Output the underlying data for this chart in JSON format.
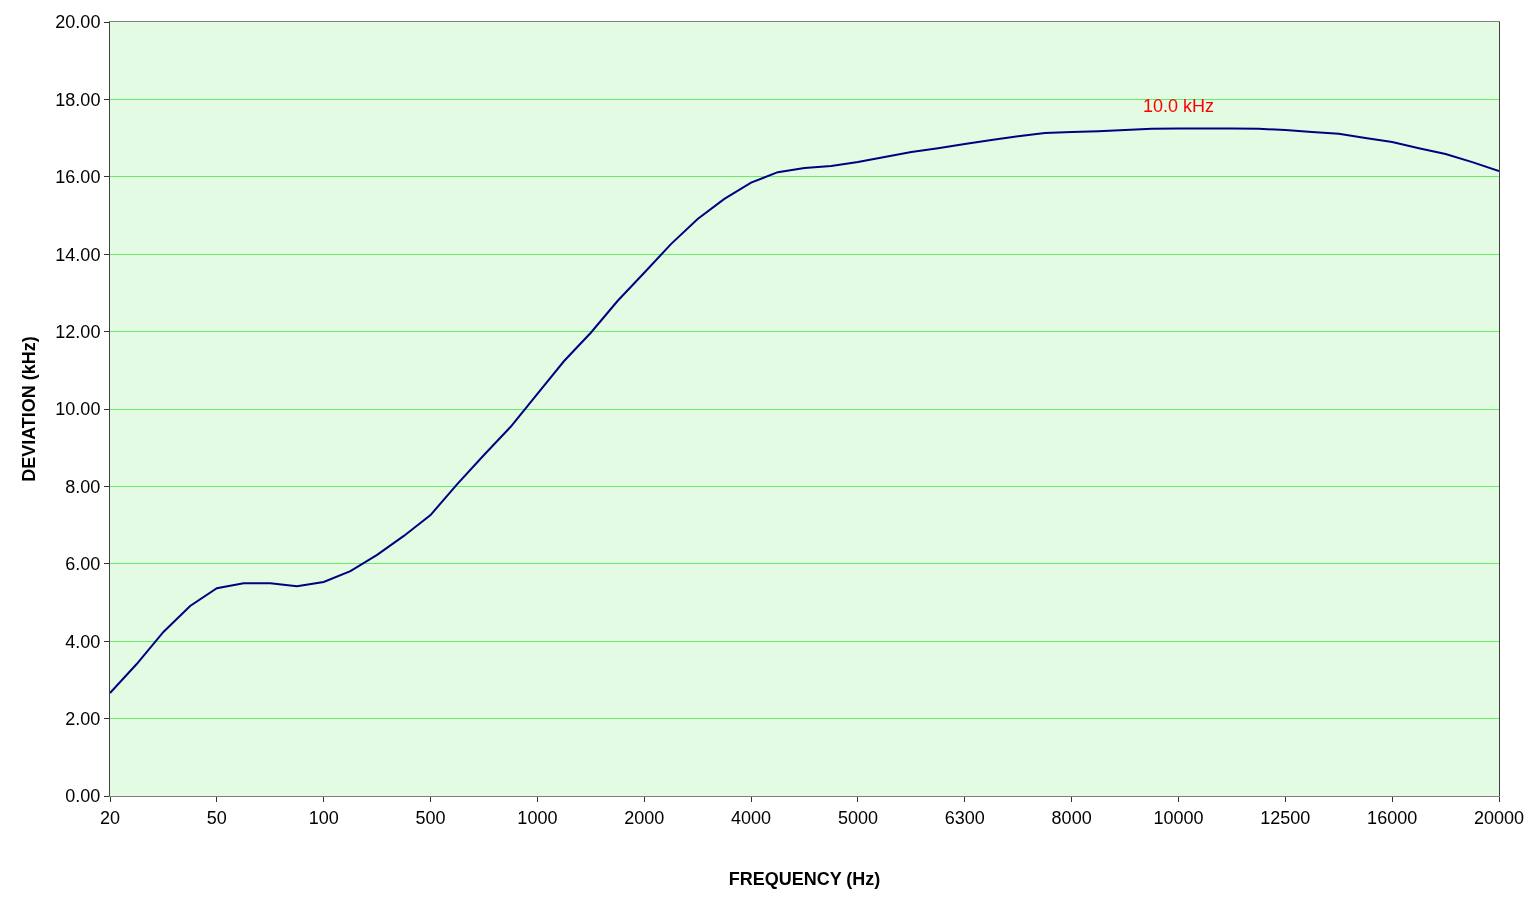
{
  "chart_data": {
    "type": "line",
    "xlabel": "FREQUENCY (Hz)",
    "ylabel": "DEVIATION (kHz)",
    "categories": [
      "20",
      null,
      null,
      null,
      "50",
      null,
      null,
      null,
      "100",
      null,
      null,
      null,
      "500",
      null,
      null,
      null,
      "1000",
      null,
      null,
      null,
      "2000",
      null,
      null,
      null,
      "4000",
      null,
      null,
      null,
      "5000",
      null,
      null,
      null,
      "6300",
      null,
      null,
      null,
      "8000",
      null,
      null,
      null,
      "10000",
      null,
      null,
      null,
      "12500",
      null,
      null,
      null,
      "16000",
      null,
      null,
      null,
      "20000"
    ],
    "series": [
      {
        "color": "#000080",
        "values": [
          2.66,
          3.41,
          4.24,
          4.91,
          5.37,
          5.5,
          5.5,
          5.42,
          5.53,
          5.81,
          6.23,
          6.72,
          7.26,
          8.06,
          8.81,
          9.54,
          10.39,
          11.24,
          11.97,
          12.79,
          13.52,
          14.26,
          14.91,
          15.43,
          15.85,
          16.12,
          16.23,
          16.28,
          16.38,
          16.51,
          16.64,
          16.74,
          16.85,
          16.95,
          17.05,
          17.13,
          17.16,
          17.18,
          17.21,
          17.24,
          17.25,
          17.25,
          17.25,
          17.24,
          17.21,
          17.16,
          17.11,
          17.0,
          16.9,
          16.74,
          16.59,
          16.38,
          16.15
        ]
      }
    ],
    "ylim": [
      0,
      20
    ],
    "yticks": [
      {
        "value": 0,
        "label": "0.00"
      },
      {
        "value": 2,
        "label": "2.00"
      },
      {
        "value": 4,
        "label": "4.00"
      },
      {
        "value": 6,
        "label": "6.00"
      },
      {
        "value": 8,
        "label": "8.00"
      },
      {
        "value": 10,
        "label": "10.00"
      },
      {
        "value": 12,
        "label": "12.00"
      },
      {
        "value": 14,
        "label": "14.00"
      },
      {
        "value": 16,
        "label": "16.00"
      },
      {
        "value": 18,
        "label": "18.00"
      },
      {
        "value": 20,
        "label": "20.00"
      }
    ],
    "grid": "y",
    "marker": "none",
    "line_style": "solid",
    "annotations": [
      {
        "text": "10.0 kHz",
        "x": "10000",
        "y": 17.25
      }
    ]
  }
}
